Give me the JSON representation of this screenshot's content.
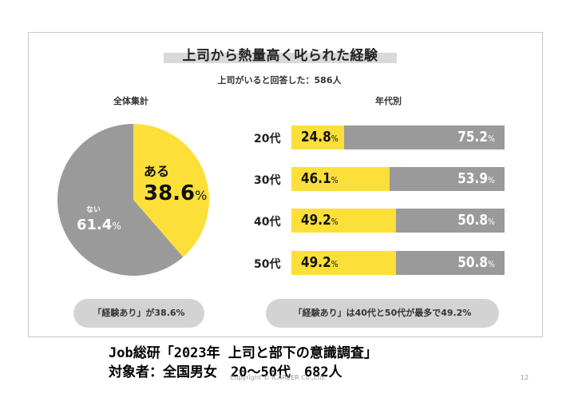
{
  "chart_data": [
    {
      "type": "pie",
      "title": "上司から熱量高く叱られた経験",
      "subtitle": "上司がいると回答した：586人",
      "panel_label": "全体集計",
      "slices": [
        {
          "name": "ある",
          "value": 38.6,
          "label": "38.6",
          "unit": "%",
          "color": "#fddf3a"
        },
        {
          "name": "ない",
          "value": 61.4,
          "label": "61.4",
          "unit": "%",
          "color": "#9a9a9a"
        }
      ]
    },
    {
      "type": "bar",
      "orientation": "horizontal",
      "stacked": true,
      "panel_label": "年代別",
      "categories": [
        "20代",
        "30代",
        "40代",
        "50代"
      ],
      "series": [
        {
          "values": [
            24.8,
            46.1,
            49.2,
            49.2
          ],
          "labels": [
            "24.8",
            "46.1",
            "49.2",
            "49.2"
          ],
          "color": "#fddf3a"
        },
        {
          "values": [
            75.2,
            53.9,
            50.8,
            50.8
          ],
          "labels": [
            "75.2",
            "53.9",
            "50.8",
            "50.8"
          ],
          "color": "#9a9a9a"
        }
      ],
      "unit": "%",
      "xlim": [
        0,
        100
      ]
    }
  ],
  "notes": {
    "left": "「経験あり」が38.6%",
    "right": "「経験あり」は40代と50代が最多で49.2%"
  },
  "footer": {
    "line1": "Job総研「2023年 上司と部下の意識調査」",
    "line2": "対象者：全国男女　20～50代　682人",
    "copyright": "Copyright © ICAREER Co.,Ltd.",
    "page": "12"
  }
}
